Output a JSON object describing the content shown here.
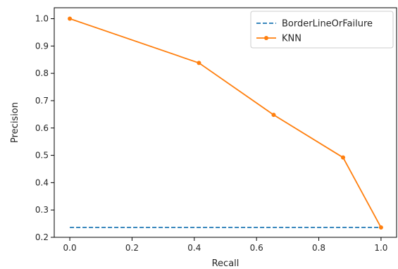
{
  "chart_data": {
    "type": "line",
    "title": "",
    "xlabel": "Recall",
    "ylabel": "Precision",
    "xlim": [
      -0.05,
      1.05
    ],
    "ylim": [
      0.2,
      1.04
    ],
    "xticks": [
      0.0,
      0.2,
      0.4,
      0.6,
      0.8,
      1.0
    ],
    "xtick_labels": [
      "0.0",
      "0.2",
      "0.4",
      "0.6",
      "0.8",
      "1.0"
    ],
    "yticks": [
      0.2,
      0.3,
      0.4,
      0.5,
      0.6,
      0.7,
      0.8,
      0.9,
      1.0
    ],
    "ytick_labels": [
      "0.2",
      "0.3",
      "0.4",
      "0.5",
      "0.6",
      "0.7",
      "0.8",
      "0.9",
      "1.0"
    ],
    "grid": false,
    "legend_position": "top-right",
    "series": [
      {
        "name": "BorderLineOrFailure",
        "style": "dashed",
        "color": "#1f77b4",
        "x": [
          0.0,
          1.0
        ],
        "y": [
          0.236,
          0.236
        ]
      },
      {
        "name": "KNN",
        "style": "solid-marker",
        "color": "#ff7f0e",
        "x": [
          0.0,
          0.415,
          0.655,
          0.878,
          1.0
        ],
        "y": [
          1.0,
          0.838,
          0.648,
          0.492,
          0.236
        ]
      }
    ]
  }
}
